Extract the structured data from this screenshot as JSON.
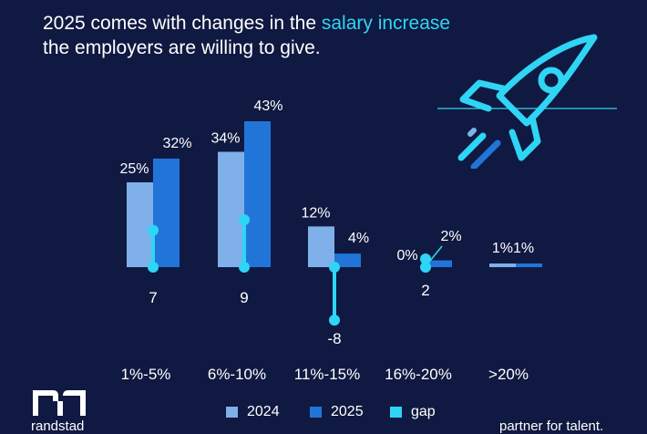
{
  "headline": {
    "line1": "2025 comes with changes in the ",
    "accent": "salary increase",
    "line2": "the employers are willing to give."
  },
  "colors": {
    "background": "#0f1941",
    "series_2024": "#7fb0ea",
    "series_2025": "#2175d9",
    "gap": "#2fd5f4",
    "text": "#ffffff"
  },
  "chart_data": {
    "type": "bar",
    "categories": [
      "1%-5%",
      "6%-10%",
      "11%-15%",
      "16%-20%",
      ">20%"
    ],
    "series": [
      {
        "name": "2024",
        "values": [
          25,
          34,
          12,
          0,
          1
        ],
        "labels": [
          "25%",
          "34%",
          "12%",
          "0%",
          "1%"
        ]
      },
      {
        "name": "2025",
        "values": [
          32,
          43,
          4,
          2,
          1
        ],
        "labels": [
          "32%",
          "43%",
          "4%",
          "2%",
          "1%"
        ]
      }
    ],
    "gap": {
      "name": "gap",
      "values": [
        7,
        9,
        -8,
        2,
        null
      ],
      "labels": [
        "7",
        "9",
        "-8",
        "2",
        ""
      ]
    },
    "ylim": [
      0,
      43
    ],
    "grid": false,
    "legend_position": "bottom-center",
    "title": "",
    "xlabel": "",
    "ylabel": ""
  },
  "legend": [
    {
      "label": "2024",
      "color": "#7fb0ea"
    },
    {
      "label": "2025",
      "color": "#2175d9"
    },
    {
      "label": "gap",
      "color": "#2fd5f4"
    }
  ],
  "brand": {
    "name": "randstad",
    "tagline": "partner for talent."
  },
  "icons": {
    "logo": "randstad-logo-icon",
    "decoration": "rocket-icon"
  }
}
